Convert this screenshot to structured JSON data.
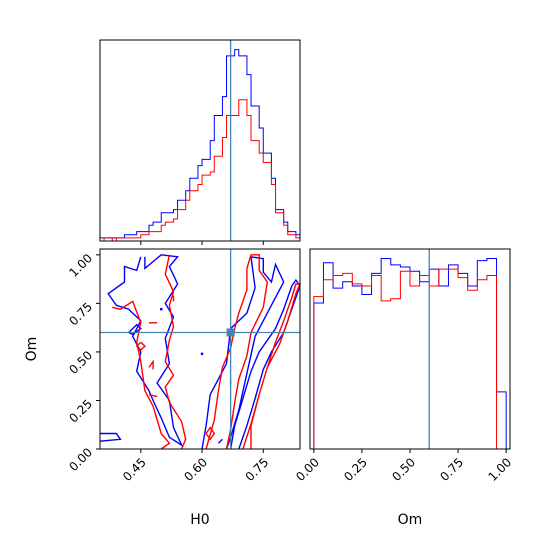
{
  "chart_data": {
    "type": "corner",
    "truth": {
      "H0": 0.67,
      "Om": 0.6
    },
    "colors": {
      "series_a": "#ff0000",
      "series_b": "#0000ff",
      "truth_line": "#4682b4"
    },
    "panels": {
      "hist_H0": {
        "type": "histogram",
        "xlim": [
          0.35,
          0.84
        ],
        "x_ticks": [
          0.45,
          0.6,
          0.75
        ],
        "bin_edges": [
          0.35,
          0.36,
          0.38,
          0.39,
          0.41,
          0.42,
          0.44,
          0.45,
          0.47,
          0.48,
          0.5,
          0.51,
          0.53,
          0.54,
          0.56,
          0.57,
          0.59,
          0.6,
          0.62,
          0.63,
          0.65,
          0.66,
          0.68,
          0.69,
          0.71,
          0.72,
          0.74,
          0.75,
          0.77,
          0.78,
          0.8,
          0.81,
          0.83,
          0.84
        ],
        "series": [
          {
            "name": "",
            "color": "#0000ff",
            "counts": [
              1,
              1,
              1,
              1,
              2,
              2,
              3,
              3,
              5,
              6,
              9,
              9,
              10,
              13,
              16,
              20,
              24,
              26,
              32,
              40,
              46,
              59,
              61,
              59,
              53,
              43,
              36,
              28,
              20,
              10,
              6,
              3,
              2
            ]
          },
          {
            "name": "",
            "color": "#ff0000",
            "counts": [
              0,
              1,
              0,
              1,
              1,
              1,
              1,
              2,
              3,
              3,
              5,
              6,
              7,
              10,
              13,
              16,
              18,
              21,
              22,
              27,
              33,
              40,
              40,
              45,
              40,
              32,
              28,
              25,
              18,
              9,
              5,
              2,
              1
            ]
          }
        ]
      },
      "hist_Om": {
        "type": "histogram",
        "xlim": [
          -0.02,
          1.02
        ],
        "x_ticks": [
          "0.00",
          "0.25",
          "0.50",
          "0.75",
          "1.00"
        ],
        "x_label": "Om",
        "bin_edges": [
          0.0,
          0.05,
          0.1,
          0.15,
          0.2,
          0.25,
          0.3,
          0.35,
          0.4,
          0.45,
          0.5,
          0.55,
          0.6,
          0.65,
          0.7,
          0.75,
          0.8,
          0.85,
          0.9,
          0.95,
          1.0
        ],
        "series": [
          {
            "name": "",
            "color": "#0000ff",
            "counts": [
              69,
              88,
              76,
              79,
              77,
              73,
              83,
              90,
              87,
              86,
              84,
              79,
              85,
              77,
              87,
              83,
              77,
              89,
              90,
              27
            ]
          },
          {
            "name": "",
            "color": "#ff0000",
            "counts": [
              72,
              80,
              82,
              83,
              78,
              77,
              82,
              70,
              71,
              84,
              77,
              82,
              77,
              85,
              85,
              81,
              75,
              80,
              82,
              0
            ]
          }
        ]
      },
      "joint": {
        "type": "contour",
        "xlim": [
          0.35,
          0.84
        ],
        "ylim": [
          0.0,
          1.03
        ],
        "x_ticks": [
          "0.45",
          "0.60",
          "0.75"
        ],
        "y_ticks": [
          "0.00",
          "0.25",
          "0.50",
          "0.75",
          "1.00"
        ],
        "x_label": "H0",
        "y_label": "Om",
        "contours": [
          {
            "color": "#0000ff",
            "points": [
              [
                0.35,
                0.08
              ],
              [
                0.39,
                0.08
              ],
              [
                0.4,
                0.05
              ],
              [
                0.35,
                0.04
              ]
            ]
          },
          {
            "color": "#0000ff",
            "points": [
              [
                0.45,
                0.99
              ],
              [
                0.44,
                0.92
              ],
              [
                0.41,
                0.94
              ],
              [
                0.41,
                0.86
              ],
              [
                0.37,
                0.8
              ],
              [
                0.39,
                0.74
              ],
              [
                0.42,
                0.72
              ],
              [
                0.45,
                0.66
              ],
              [
                0.43,
                0.58
              ],
              [
                0.45,
                0.5
              ],
              [
                0.44,
                0.4
              ],
              [
                0.47,
                0.3
              ],
              [
                0.48,
                0.25
              ],
              [
                0.5,
                0.16
              ],
              [
                0.52,
                0.06
              ],
              [
                0.55,
                0.02
              ],
              [
                0.53,
                0.11
              ],
              [
                0.52,
                0.25
              ],
              [
                0.49,
                0.34
              ],
              [
                0.52,
                0.44
              ],
              [
                0.51,
                0.57
              ],
              [
                0.53,
                0.68
              ],
              [
                0.51,
                0.75
              ],
              [
                0.54,
                0.85
              ],
              [
                0.52,
                0.94
              ],
              [
                0.54,
                0.99
              ],
              [
                0.5,
                1.0
              ],
              [
                0.46,
                0.93
              ],
              [
                0.46,
                0.99
              ]
            ]
          },
          {
            "color": "#0000ff",
            "points": [
              [
                0.42,
                0.6
              ],
              [
                0.44,
                0.64
              ],
              [
                0.45,
                0.62
              ],
              [
                0.43,
                0.59
              ],
              [
                0.42,
                0.6
              ]
            ]
          },
          {
            "color": "#0000ff",
            "points": [
              [
                0.6,
                0.0
              ],
              [
                0.61,
                0.12
              ],
              [
                0.62,
                0.28
              ],
              [
                0.64,
                0.36
              ],
              [
                0.66,
                0.44
              ],
              [
                0.67,
                0.62
              ],
              [
                0.71,
                0.7
              ],
              [
                0.73,
                0.83
              ],
              [
                0.72,
                0.99
              ],
              [
                0.75,
                0.98
              ],
              [
                0.75,
                0.91
              ],
              [
                0.77,
                0.86
              ],
              [
                0.78,
                0.95
              ],
              [
                0.8,
                0.86
              ],
              [
                0.76,
                0.7
              ],
              [
                0.73,
                0.58
              ],
              [
                0.71,
                0.39
              ],
              [
                0.69,
                0.2
              ],
              [
                0.67,
                0.06
              ],
              [
                0.66,
                0.0
              ]
            ]
          },
          {
            "color": "#0000ff",
            "points": [
              [
                0.69,
                0.0
              ],
              [
                0.71,
                0.12
              ],
              [
                0.73,
                0.26
              ],
              [
                0.75,
                0.41
              ],
              [
                0.77,
                0.5
              ],
              [
                0.8,
                0.6
              ],
              [
                0.82,
                0.72
              ],
              [
                0.84,
                0.84
              ],
              [
                0.83,
                0.87
              ],
              [
                0.82,
                0.84
              ],
              [
                0.8,
                0.72
              ],
              [
                0.78,
                0.62
              ],
              [
                0.74,
                0.5
              ],
              [
                0.72,
                0.4
              ],
              [
                0.7,
                0.26
              ],
              [
                0.68,
                0.12
              ],
              [
                0.67,
                0.0
              ]
            ]
          },
          {
            "color": "#0000ff",
            "points": [
              [
                0.65,
                0.05
              ],
              [
                0.64,
                0.03
              ]
            ]
          },
          {
            "color": "#ff0000",
            "points": [
              [
                0.38,
                0.73
              ],
              [
                0.4,
                0.72
              ],
              [
                0.43,
                0.76
              ],
              [
                0.45,
                0.65
              ],
              [
                0.44,
                0.55
              ],
              [
                0.45,
                0.45
              ],
              [
                0.46,
                0.3
              ],
              [
                0.48,
                0.22
              ],
              [
                0.5,
                0.08
              ],
              [
                0.52,
                0.03
              ],
              [
                0.5,
                0.0
              ]
            ]
          },
          {
            "color": "#ff0000",
            "points": [
              [
                0.52,
                1.0
              ],
              [
                0.51,
                0.9
              ],
              [
                0.53,
                0.81
              ],
              [
                0.52,
                0.74
              ],
              [
                0.53,
                0.63
              ],
              [
                0.52,
                0.56
              ],
              [
                0.51,
                0.45
              ],
              [
                0.53,
                0.38
              ],
              [
                0.51,
                0.32
              ],
              [
                0.52,
                0.24
              ],
              [
                0.55,
                0.14
              ],
              [
                0.56,
                0.05
              ],
              [
                0.55,
                0.0
              ]
            ]
          },
          {
            "color": "#ff0000",
            "points": [
              [
                0.61,
                0.0
              ],
              [
                0.63,
                0.15
              ],
              [
                0.64,
                0.3
              ],
              [
                0.65,
                0.42
              ],
              [
                0.67,
                0.52
              ],
              [
                0.68,
                0.62
              ],
              [
                0.69,
                0.7
              ],
              [
                0.71,
                0.82
              ],
              [
                0.71,
                0.93
              ],
              [
                0.72,
                1.0
              ],
              [
                0.74,
                1.0
              ],
              [
                0.74,
                0.92
              ],
              [
                0.76,
                0.86
              ],
              [
                0.75,
                0.73
              ],
              [
                0.72,
                0.6
              ],
              [
                0.71,
                0.48
              ],
              [
                0.69,
                0.36
              ],
              [
                0.68,
                0.24
              ],
              [
                0.67,
                0.1
              ],
              [
                0.66,
                0.0
              ]
            ]
          },
          {
            "color": "#ff0000",
            "points": [
              [
                0.7,
                0.0
              ],
              [
                0.72,
                0.13
              ],
              [
                0.74,
                0.28
              ],
              [
                0.76,
                0.42
              ],
              [
                0.78,
                0.55
              ],
              [
                0.8,
                0.66
              ],
              [
                0.82,
                0.78
              ],
              [
                0.83,
                0.85
              ],
              [
                0.84,
                0.85
              ],
              [
                0.83,
                0.8
              ],
              [
                0.81,
                0.66
              ],
              [
                0.79,
                0.54
              ],
              [
                0.76,
                0.42
              ],
              [
                0.74,
                0.28
              ],
              [
                0.72,
                0.12
              ],
              [
                0.72,
                0.0
              ]
            ]
          },
          {
            "color": "#ff0000",
            "points": [
              [
                0.45,
                0.55
              ],
              [
                0.44,
                0.53
              ],
              [
                0.45,
                0.51
              ],
              [
                0.46,
                0.53
              ],
              [
                0.45,
                0.55
              ]
            ]
          },
          {
            "color": "#ff0000",
            "points": [
              [
                0.47,
                0.65
              ],
              [
                0.49,
                0.65
              ]
            ]
          },
          {
            "color": "#ff0000",
            "points": [
              [
                0.47,
                0.42
              ],
              [
                0.48,
                0.45
              ],
              [
                0.48,
                0.41
              ]
            ]
          },
          {
            "color": "#ff0000",
            "points": [
              [
                0.47,
                0.28
              ],
              [
                0.49,
                0.27
              ]
            ]
          },
          {
            "color": "#ff0000",
            "points": [
              [
                0.61,
                0.08
              ],
              [
                0.62,
                0.05
              ],
              [
                0.63,
                0.08
              ],
              [
                0.62,
                0.11
              ],
              [
                0.61,
                0.08
              ]
            ]
          },
          {
            "color": "#ff0000",
            "points": [
              [
                0.67,
                0.33
              ],
              [
                0.67,
                0.36
              ]
            ]
          },
          {
            "color": "#ff0000",
            "points": [
              [
                0.53,
                0.79
              ],
              [
                0.53,
                0.76
              ]
            ]
          }
        ],
        "dots": [
          {
            "color": "#0000ff",
            "point": [
              0.6,
              0.49
            ]
          },
          {
            "color": "#0000ff",
            "point": [
              0.5,
              0.72
            ]
          }
        ]
      }
    }
  }
}
